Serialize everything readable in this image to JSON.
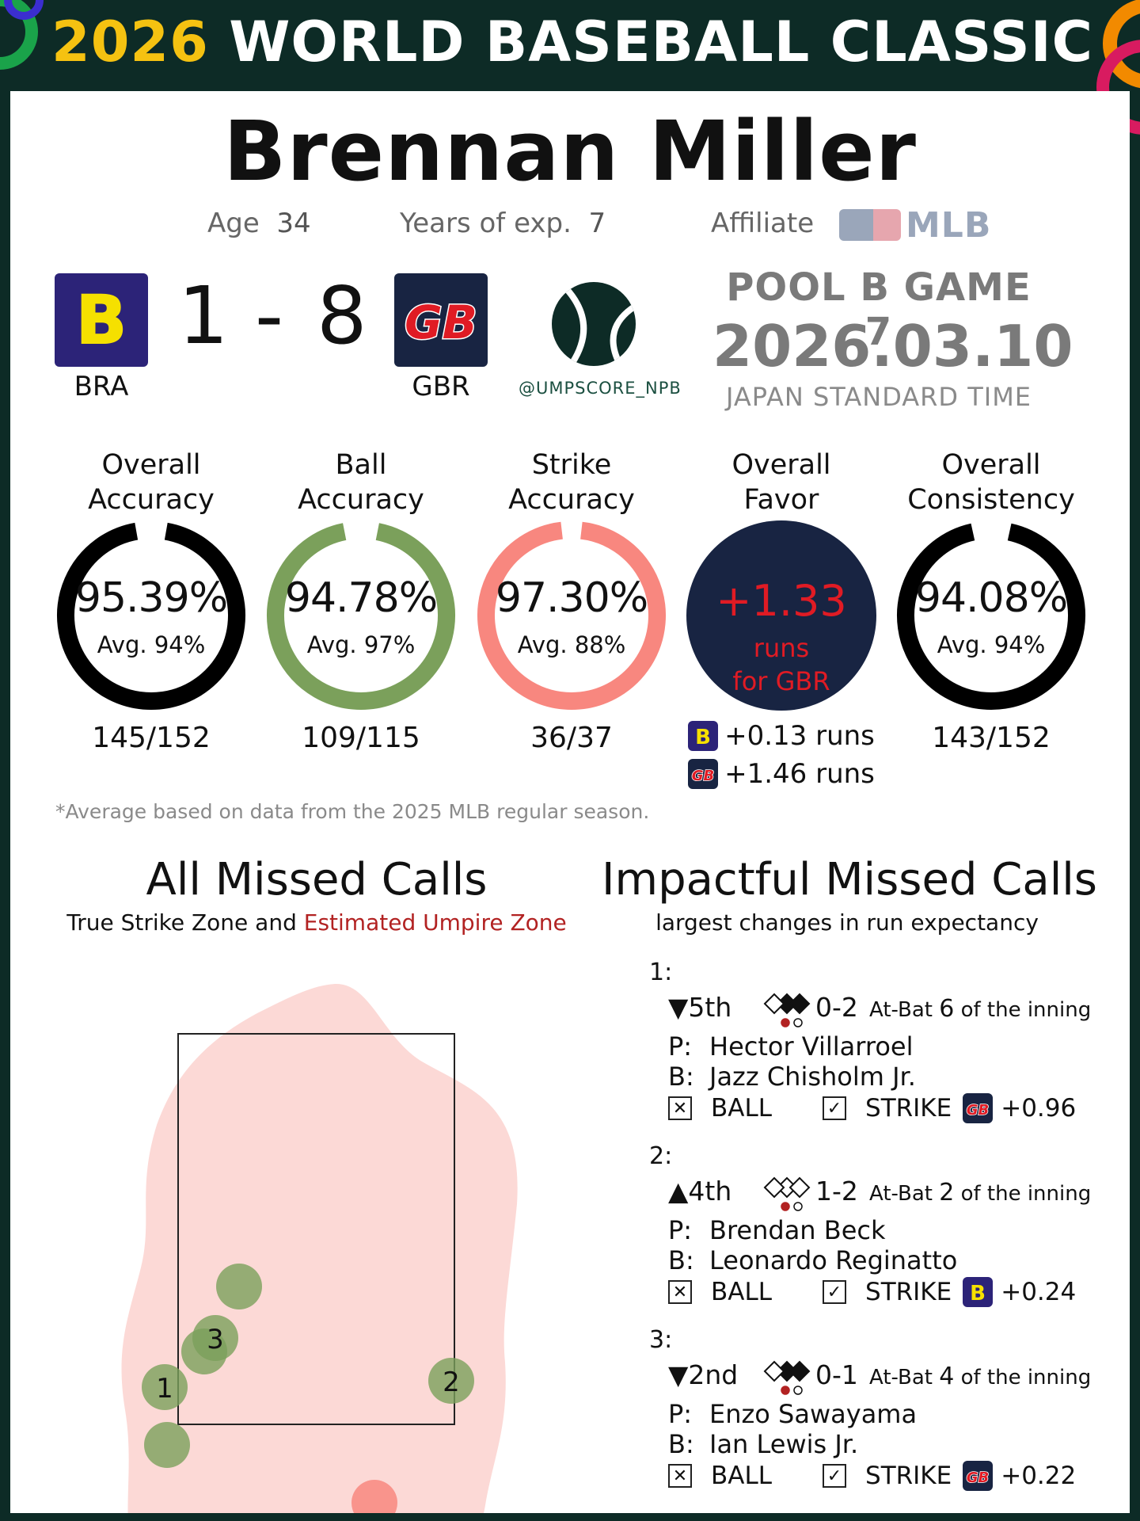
{
  "header": {
    "year": "2026",
    "title": "WORLD BASEBALL CLASSIC"
  },
  "umpire": {
    "name": "Brennan Miller",
    "age_label": "Age",
    "age": "34",
    "exp_label": "Years of exp.",
    "exp": "7",
    "affiliate_label": "Affiliate",
    "affiliate": "MLB"
  },
  "game": {
    "away": {
      "abbr": "BRA",
      "logo": "B",
      "score": "1"
    },
    "home": {
      "abbr": "GBR",
      "logo": "GB",
      "score": "8"
    },
    "dash": "-",
    "handle": "@UMPSCORE_NPB",
    "pool": "POOL B GAME 7",
    "date": "2026.03.10",
    "timezone": "JAPAN STANDARD TIME"
  },
  "metrics": [
    {
      "label1": "Overall",
      "label2": "Accuracy",
      "value": "95.39%",
      "avg": "Avg. 94%",
      "count": "145/152",
      "fraction": 0.9539,
      "color": "#000000"
    },
    {
      "label1": "Ball",
      "label2": "Accuracy",
      "value": "94.78%",
      "avg": "Avg. 97%",
      "count": "109/115",
      "fraction": 0.9478,
      "color": "#7ba05b"
    },
    {
      "label1": "Strike",
      "label2": "Accuracy",
      "value": "97.30%",
      "avg": "Avg. 88%",
      "count": "36/37",
      "fraction": 0.973,
      "color": "#f8877f"
    },
    {
      "label1": "Overall",
      "label2": "Consistency",
      "value": "94.08%",
      "avg": "Avg. 94%",
      "count": "143/152",
      "fraction": 0.9408,
      "color": "#000000"
    }
  ],
  "favor": {
    "label1": "Overall",
    "label2": "Favor",
    "value": "+1.33",
    "unit1": "runs",
    "unit2": "for GBR",
    "bra": "+0.13 runs",
    "gbr": "+1.46 runs"
  },
  "footnote": "*Average based on data from the 2025 MLB regular season.",
  "missed": {
    "title": "All Missed Calls",
    "subtitle_a": "True Strike Zone and",
    "subtitle_b": "Estimated Umpire Zone",
    "labels": [
      "1",
      "2",
      "3"
    ]
  },
  "impactful": {
    "title": "Impactful Missed Calls",
    "subtitle": "largest changes in run expectancy",
    "atbat_label": "At-Bat",
    "inning_suffix": "of the inning",
    "p_label": "P:",
    "b_label": "B:",
    "ball": "BALL",
    "strike": "STRIKE",
    "calls": [
      {
        "num": "1:",
        "inning": "▼5th",
        "count": "0-2",
        "atbat": "6",
        "pitcher": "Hector Villarroel",
        "batter": "Jazz Chisholm Jr.",
        "team": "GB",
        "delta": "+0.96"
      },
      {
        "num": "2:",
        "inning": "▲4th",
        "count": "1-2",
        "atbat": "2",
        "pitcher": "Brendan Beck",
        "batter": "Leonardo Reginatto",
        "team": "B",
        "delta": "+0.24"
      },
      {
        "num": "3:",
        "inning": "▼2nd",
        "count": "0-1",
        "atbat": "4",
        "pitcher": "Enzo Sawayama",
        "batter": "Ian Lewis Jr.",
        "team": "GB",
        "delta": "+0.22"
      }
    ]
  },
  "colors": {
    "bg": "#0d2b26",
    "gold": "#f5c211",
    "navy": "#182442",
    "purple": "#2c2378",
    "red": "#e01b24",
    "green": "#7ba05b",
    "salmon": "#f8877f"
  }
}
